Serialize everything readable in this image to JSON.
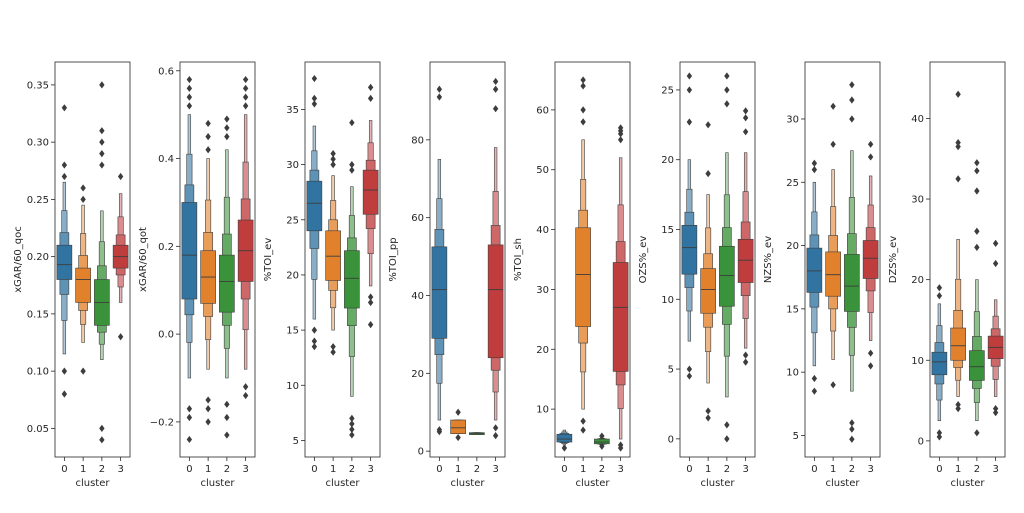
{
  "chart_data": {
    "type": "boxen",
    "layout": "1 row x 8 panels",
    "categories": [
      "0",
      "1",
      "2",
      "3"
    ],
    "xlabel": "cluster",
    "colors": [
      "#3274a1",
      "#e1812c",
      "#3a923a",
      "#c03d3e"
    ],
    "panels": [
      {
        "ylabel": "xGAR/60_qoc",
        "ylim": [
          0.025,
          0.37
        ],
        "yticks": [
          "0.05",
          "0.10",
          "0.15",
          "0.20",
          "0.25",
          "0.30",
          "0.35"
        ],
        "series": [
          {
            "category": "0",
            "median": 0.193,
            "q1": 0.18,
            "q3": 0.21,
            "min": 0.115,
            "max": 0.265,
            "outliers": [
              0.33,
              0.28,
              0.27,
              0.1,
              0.08
            ]
          },
          {
            "category": "1",
            "median": 0.18,
            "q1": 0.16,
            "q3": 0.19,
            "min": 0.125,
            "max": 0.245,
            "outliers": [
              0.26,
              0.25,
              0.1
            ]
          },
          {
            "category": "2",
            "median": 0.16,
            "q1": 0.14,
            "q3": 0.18,
            "min": 0.11,
            "max": 0.24,
            "outliers": [
              0.35,
              0.31,
              0.3,
              0.29,
              0.28,
              0.05,
              0.04
            ]
          },
          {
            "category": "3",
            "median": 0.2,
            "q1": 0.19,
            "q3": 0.21,
            "min": 0.16,
            "max": 0.255,
            "outliers": [
              0.27,
              0.13
            ]
          }
        ]
      },
      {
        "ylabel": "xGAR/60_qot",
        "ylim": [
          -0.28,
          0.62
        ],
        "yticks": [
          "−0.2",
          "0.0",
          "0.2",
          "0.4",
          "0.6"
        ],
        "series": [
          {
            "category": "0",
            "median": 0.18,
            "q1": 0.08,
            "q3": 0.3,
            "min": -0.1,
            "max": 0.5,
            "outliers": [
              0.58,
              0.56,
              0.54,
              0.52,
              -0.17,
              -0.19,
              -0.24
            ]
          },
          {
            "category": "1",
            "median": 0.13,
            "q1": 0.07,
            "q3": 0.19,
            "min": -0.08,
            "max": 0.4,
            "outliers": [
              0.48,
              0.45,
              0.42,
              -0.15,
              -0.17,
              -0.2
            ]
          },
          {
            "category": "2",
            "median": 0.12,
            "q1": 0.05,
            "q3": 0.18,
            "min": -0.1,
            "max": 0.42,
            "outliers": [
              0.49,
              0.47,
              0.45,
              -0.16,
              -0.19,
              -0.23
            ]
          },
          {
            "category": "3",
            "median": 0.19,
            "q1": 0.12,
            "q3": 0.26,
            "min": -0.08,
            "max": 0.5,
            "outliers": [
              0.58,
              0.56,
              0.54,
              0.52,
              -0.12,
              -0.14
            ]
          }
        ]
      },
      {
        "ylabel": "%TOI_ev",
        "ylim": [
          3.5,
          39.3
        ],
        "yticks": [
          "5",
          "10",
          "15",
          "20",
          "25",
          "30",
          "35"
        ],
        "series": [
          {
            "category": "0",
            "median": 26.5,
            "q1": 24.0,
            "q3": 28.5,
            "min": 16.0,
            "max": 33.5,
            "outliers": [
              37.8,
              36.0,
              35.5,
              15.0,
              14.0,
              13.5
            ]
          },
          {
            "category": "1",
            "median": 21.7,
            "q1": 19.5,
            "q3": 24.0,
            "min": 15.0,
            "max": 29.0,
            "outliers": [
              31.0,
              30.5,
              30.0,
              13.5,
              13.0
            ]
          },
          {
            "category": "2",
            "median": 19.7,
            "q1": 17.0,
            "q3": 22.2,
            "min": 9.0,
            "max": 28.0,
            "outliers": [
              33.8,
              30.0,
              29.5,
              7.0,
              6.5,
              6.0,
              5.5
            ]
          },
          {
            "category": "3",
            "median": 27.7,
            "q1": 25.5,
            "q3": 29.5,
            "min": 19.0,
            "max": 34.0,
            "outliers": [
              37.0,
              36.0,
              18.0,
              17.5,
              15.5
            ]
          }
        ]
      },
      {
        "ylabel": "%TOI_pp",
        "ylim": [
          -1.5,
          100.0
        ],
        "yticks": [
          "0",
          "20",
          "40",
          "60",
          "80"
        ],
        "series": [
          {
            "category": "0",
            "median": 41.5,
            "q1": 29.0,
            "q3": 52.5,
            "min": 8.0,
            "max": 75.0,
            "outliers": [
              93.0,
              91.0,
              5.5,
              5.0
            ]
          },
          {
            "category": "1",
            "median": 6.0,
            "q1": 4.5,
            "q3": 8.0,
            "min": 4.5,
            "max": 8.0,
            "outliers": [
              10.0,
              3.5
            ]
          },
          {
            "category": "2",
            "median": 4.5,
            "q1": 4.5,
            "q3": 4.5,
            "min": 4.5,
            "max": 4.5,
            "outliers": []
          },
          {
            "category": "3",
            "median": 41.5,
            "q1": 24.0,
            "q3": 53.0,
            "min": 8.0,
            "max": 78.0,
            "outliers": [
              95.0,
              93.0,
              88.0,
              6.0,
              4.0
            ]
          }
        ]
      },
      {
        "ylabel": "%TOI_sh",
        "ylim": [
          2.0,
          68.0
        ],
        "yticks": [
          "10",
          "20",
          "30",
          "40",
          "50",
          "60"
        ],
        "series": [
          {
            "category": "0",
            "median": 5.0,
            "q1": 4.5,
            "q3": 5.8,
            "min": 4.0,
            "max": 6.5,
            "outliers": [
              3.5
            ]
          },
          {
            "category": "1",
            "median": 32.5,
            "q1": 23.8,
            "q3": 40.3,
            "min": 10.0,
            "max": 55.0,
            "outliers": [
              65.0,
              64.0,
              60.0,
              58.0,
              8.0,
              6.5
            ]
          },
          {
            "category": "2",
            "median": 4.5,
            "q1": 4.2,
            "q3": 5.0,
            "min": 4.0,
            "max": 5.2,
            "outliers": [
              3.8,
              5.5
            ]
          },
          {
            "category": "3",
            "median": 27.0,
            "q1": 16.3,
            "q3": 34.5,
            "min": 5.0,
            "max": 52.0,
            "outliers": [
              57.0,
              56.5,
              56.0,
              55.0,
              4.0,
              3.5
            ]
          }
        ]
      },
      {
        "ylabel": "OZS%_ev",
        "ylim": [
          -1.3,
          27.0
        ],
        "yticks": [
          "0",
          "5",
          "10",
          "15",
          "20",
          "25"
        ],
        "series": [
          {
            "category": "0",
            "median": 13.7,
            "q1": 11.8,
            "q3": 15.3,
            "min": 7.0,
            "max": 20.0,
            "outliers": [
              26.0,
              25.0,
              22.7,
              5.0,
              4.5
            ]
          },
          {
            "category": "1",
            "median": 10.7,
            "q1": 9.0,
            "q3": 12.2,
            "min": 4.0,
            "max": 17.5,
            "outliers": [
              22.5,
              19.0,
              2.0,
              1.5
            ]
          },
          {
            "category": "2",
            "median": 11.7,
            "q1": 9.5,
            "q3": 13.8,
            "min": 3.0,
            "max": 20.5,
            "outliers": [
              26.0,
              25.0,
              24.0,
              1.0,
              0.0
            ]
          },
          {
            "category": "3",
            "median": 12.8,
            "q1": 11.2,
            "q3": 14.3,
            "min": 6.5,
            "max": 20.5,
            "outliers": [
              23.5,
              23.0,
              22.0,
              6.0,
              5.5
            ]
          }
        ]
      },
      {
        "ylabel": "NZS%_ev",
        "ylim": [
          3.3,
          34.5
        ],
        "yticks": [
          "5",
          "10",
          "15",
          "20",
          "25",
          "30"
        ],
        "series": [
          {
            "category": "0",
            "median": 18.0,
            "q1": 16.3,
            "q3": 19.8,
            "min": 10.5,
            "max": 25.0,
            "outliers": [
              26.5,
              26.0,
              9.5,
              8.5
            ]
          },
          {
            "category": "1",
            "median": 17.7,
            "q1": 16.0,
            "q3": 19.5,
            "min": 11.0,
            "max": 26.0,
            "outliers": [
              31.0,
              28.0,
              9.0
            ]
          },
          {
            "category": "2",
            "median": 16.8,
            "q1": 14.8,
            "q3": 19.3,
            "min": 8.5,
            "max": 27.5,
            "outliers": [
              32.7,
              31.5,
              30.0,
              6.0,
              5.5,
              4.7
            ]
          },
          {
            "category": "3",
            "median": 19.0,
            "q1": 17.4,
            "q3": 20.4,
            "min": 12.5,
            "max": 25.5,
            "outliers": [
              28.0,
              27.0,
              11.5,
              10.5
            ]
          }
        ]
      },
      {
        "ylabel": "DZS%_ev",
        "ylim": [
          -2.0,
          47.0
        ],
        "yticks": [
          "0",
          "10",
          "20",
          "30",
          "40"
        ],
        "series": [
          {
            "category": "0",
            "median": 9.8,
            "q1": 8.2,
            "q3": 11.0,
            "min": 2.5,
            "max": 17.0,
            "outliers": [
              19.0,
              18.0,
              1.0,
              0.5
            ]
          },
          {
            "category": "1",
            "median": 11.8,
            "q1": 10.0,
            "q3": 14.0,
            "min": 5.5,
            "max": 25.0,
            "outliers": [
              43.0,
              37.0,
              36.5,
              32.5,
              4.5,
              4.0
            ]
          },
          {
            "category": "2",
            "median": 9.2,
            "q1": 7.5,
            "q3": 11.2,
            "min": 2.5,
            "max": 20.0,
            "outliers": [
              34.5,
              33.5,
              31.0,
              26.0,
              24.0,
              1.0
            ]
          },
          {
            "category": "3",
            "median": 11.6,
            "q1": 10.2,
            "q3": 13.0,
            "min": 5.5,
            "max": 17.5,
            "outliers": [
              24.5,
              22.0,
              4.0,
              3.5
            ]
          }
        ]
      }
    ]
  }
}
